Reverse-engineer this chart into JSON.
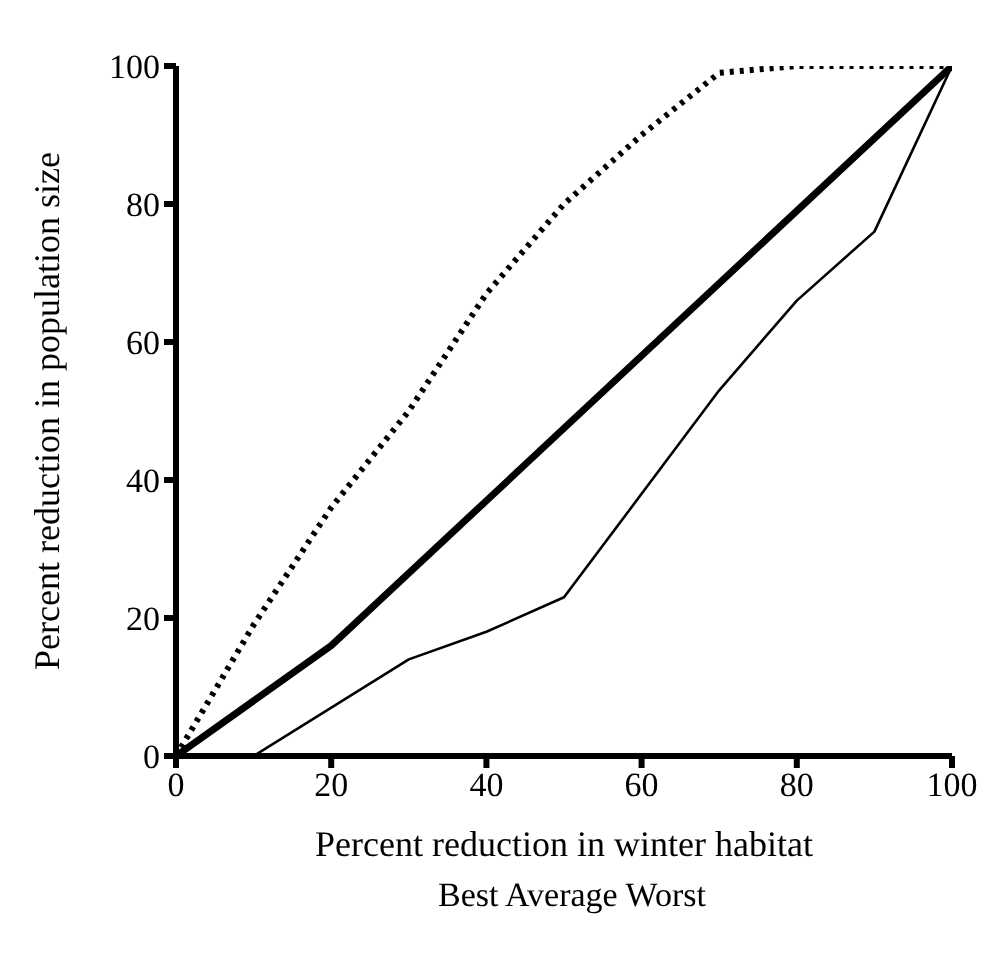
{
  "chart_data": {
    "type": "line",
    "xlabel": "Percent reduction in winter habitat",
    "ylabel": "Percent reduction in population size",
    "xlim": [
      0,
      100
    ],
    "xticks": [
      0,
      20,
      40,
      60,
      80,
      100
    ],
    "ylim": [
      0,
      100
    ],
    "yticks": [
      0,
      20,
      40,
      60,
      80,
      100
    ],
    "grid": false,
    "marker": "none",
    "annotations": [
      "Best Average Worst"
    ],
    "series": [
      {
        "color": "#000000",
        "line_style": "solid",
        "x": [
          10,
          30,
          40,
          50,
          60,
          70,
          80,
          90,
          100
        ],
        "values": [
          0,
          14,
          18,
          23,
          38,
          53,
          66,
          76,
          100
        ]
      },
      {
        "color": "#000000",
        "line_style": "solid",
        "x": [
          0,
          20,
          40,
          60,
          80,
          100
        ],
        "values": [
          0,
          16,
          37,
          58,
          79,
          100
        ]
      },
      {
        "color": "#000000",
        "line_style": "dotted",
        "x": [
          0,
          10,
          20,
          30,
          40,
          50,
          60,
          70,
          80,
          100
        ],
        "values": [
          0,
          19,
          36,
          50,
          67,
          80,
          90,
          99,
          100,
          100
        ]
      }
    ]
  }
}
